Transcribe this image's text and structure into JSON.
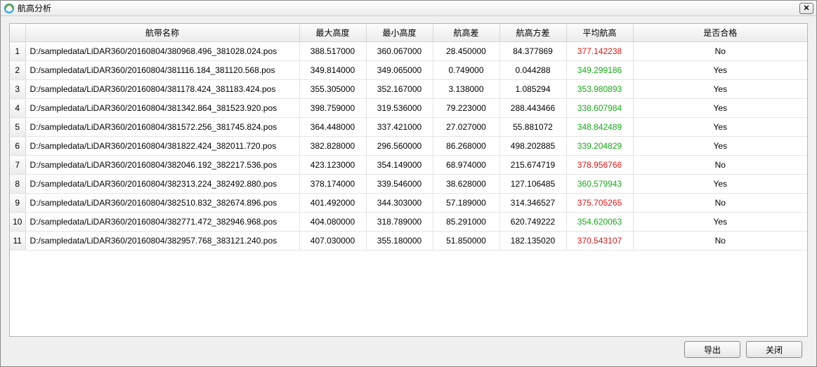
{
  "window": {
    "title": "航高分析",
    "close_label": "✕"
  },
  "columns": {
    "name": "航带名称",
    "max": "最大高度",
    "min": "最小高度",
    "diff": "航高差",
    "var": "航高方差",
    "avg": "平均航高",
    "pass": "是否合格"
  },
  "colors": {
    "pass_avg": "#18a818",
    "fail_avg": "#d81818",
    "header_bg_top": "#fdfdfd",
    "header_bg_bottom": "#ececec",
    "border": "#b5b5b5",
    "cell_border": "#e4e4e4"
  },
  "buttons": {
    "export": "导出",
    "close": "关闭"
  },
  "rows": [
    {
      "idx": "1",
      "name": "D:/sampledata/LiDAR360/20160804/380968.496_381028.024.pos",
      "max": "388.517000",
      "min": "360.067000",
      "diff": "28.450000",
      "var": "84.377869",
      "avg": "377.142238",
      "pass": "No"
    },
    {
      "idx": "2",
      "name": "D:/sampledata/LiDAR360/20160804/381116.184_381120.568.pos",
      "max": "349.814000",
      "min": "349.065000",
      "diff": "0.749000",
      "var": "0.044288",
      "avg": "349.299186",
      "pass": "Yes"
    },
    {
      "idx": "3",
      "name": "D:/sampledata/LiDAR360/20160804/381178.424_381183.424.pos",
      "max": "355.305000",
      "min": "352.167000",
      "diff": "3.138000",
      "var": "1.085294",
      "avg": "353.980893",
      "pass": "Yes"
    },
    {
      "idx": "4",
      "name": "D:/sampledata/LiDAR360/20160804/381342.864_381523.920.pos",
      "max": "398.759000",
      "min": "319.536000",
      "diff": "79.223000",
      "var": "288.443466",
      "avg": "338.607984",
      "pass": "Yes"
    },
    {
      "idx": "5",
      "name": "D:/sampledata/LiDAR360/20160804/381572.256_381745.824.pos",
      "max": "364.448000",
      "min": "337.421000",
      "diff": "27.027000",
      "var": "55.881072",
      "avg": "348.842489",
      "pass": "Yes"
    },
    {
      "idx": "6",
      "name": "D:/sampledata/LiDAR360/20160804/381822.424_382011.720.pos",
      "max": "382.828000",
      "min": "296.560000",
      "diff": "86.268000",
      "var": "498.202885",
      "avg": "339.204829",
      "pass": "Yes"
    },
    {
      "idx": "7",
      "name": "D:/sampledata/LiDAR360/20160804/382046.192_382217.536.pos",
      "max": "423.123000",
      "min": "354.149000",
      "diff": "68.974000",
      "var": "215.674719",
      "avg": "378.956766",
      "pass": "No"
    },
    {
      "idx": "8",
      "name": "D:/sampledata/LiDAR360/20160804/382313.224_382492.880.pos",
      "max": "378.174000",
      "min": "339.546000",
      "diff": "38.628000",
      "var": "127.106485",
      "avg": "360.579943",
      "pass": "Yes"
    },
    {
      "idx": "9",
      "name": "D:/sampledata/LiDAR360/20160804/382510.832_382674.896.pos",
      "max": "401.492000",
      "min": "344.303000",
      "diff": "57.189000",
      "var": "314.346527",
      "avg": "375.705265",
      "pass": "No"
    },
    {
      "idx": "10",
      "name": "D:/sampledata/LiDAR360/20160804/382771.472_382946.968.pos",
      "max": "404.080000",
      "min": "318.789000",
      "diff": "85.291000",
      "var": "620.749222",
      "avg": "354.620063",
      "pass": "Yes"
    },
    {
      "idx": "11",
      "name": "D:/sampledata/LiDAR360/20160804/382957.768_383121.240.pos",
      "max": "407.030000",
      "min": "355.180000",
      "diff": "51.850000",
      "var": "182.135020",
      "avg": "370.543107",
      "pass": "No"
    }
  ]
}
